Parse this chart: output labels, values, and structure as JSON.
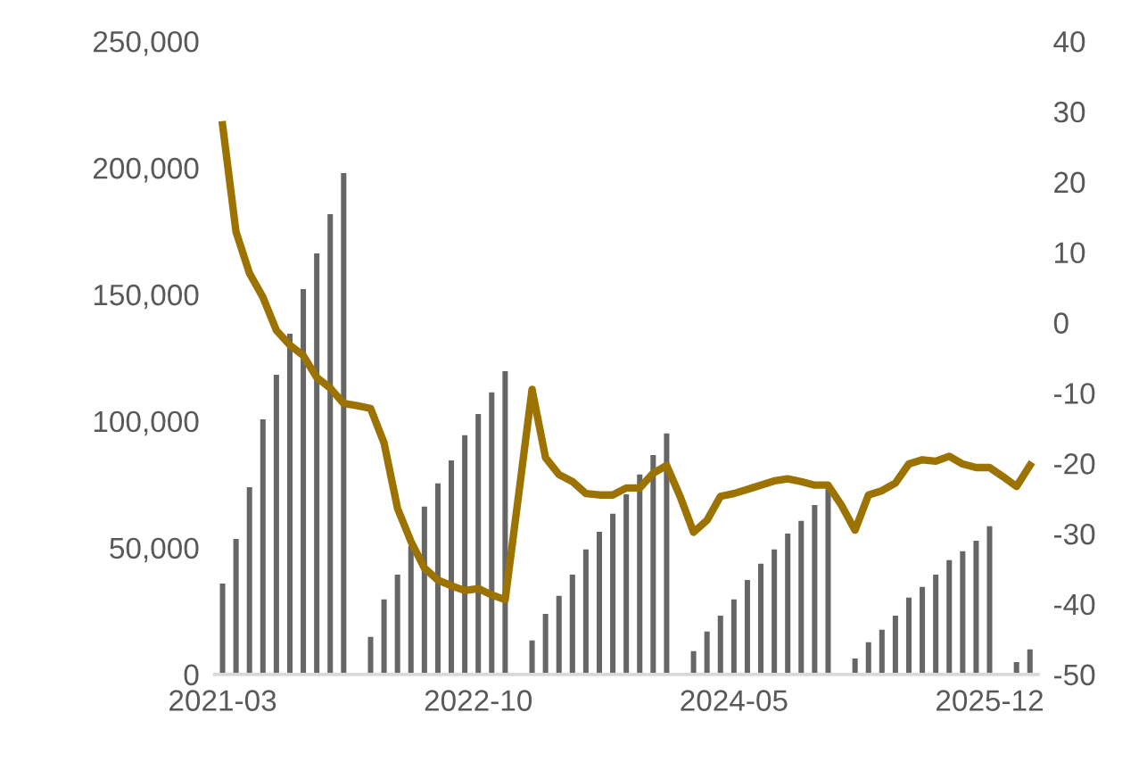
{
  "chart_data": {
    "type": "bar",
    "categories": [
      "2021-03",
      null,
      null,
      null,
      null,
      null,
      null,
      null,
      null,
      null,
      null,
      null,
      null,
      null,
      null,
      null,
      null,
      null,
      null,
      "2022-10",
      null,
      null,
      null,
      null,
      null,
      null,
      null,
      null,
      null,
      null,
      null,
      null,
      null,
      null,
      null,
      null,
      null,
      null,
      "2024-05",
      null,
      null,
      null,
      null,
      null,
      null,
      null,
      null,
      null,
      null,
      null,
      null,
      null,
      null,
      null,
      null,
      null,
      null,
      "2025-12",
      null,
      null,
      null
    ],
    "series": [
      {
        "color": "#666666",
        "values": [
          35900,
          53500,
          73900,
          100700,
          118300,
          134500,
          152100,
          166200,
          181700,
          197900,
          null,
          14800,
          29600,
          39400,
          50700,
          66200,
          75400,
          84500,
          94400,
          102800,
          111300,
          119700,
          null,
          13400,
          23900,
          31000,
          39400,
          49300,
          56300,
          63400,
          71100,
          78900,
          86600,
          95100,
          null,
          9200,
          16900,
          23200,
          29600,
          37300,
          43700,
          49300,
          55600,
          60600,
          66900,
          73900,
          null,
          6300,
          12700,
          17600,
          23200,
          30300,
          34500,
          39400,
          45100,
          48600,
          52800,
          58500,
          null,
          4900,
          9900
        ]
      },
      {
        "type": "line",
        "axis": "y2",
        "color": "#9c7200",
        "values": [
          28.1,
          12.9,
          7.0,
          3.6,
          -1.1,
          -3.2,
          -4.7,
          -7.8,
          -9.3,
          -11.5,
          -11.8,
          -12.2,
          -17.1,
          -26.4,
          -31.1,
          -34.9,
          -36.6,
          -37.4,
          -38.1,
          -37.8,
          -38.7,
          -39.4,
          -24.5,
          -9.5,
          -19.2,
          -21.6,
          -22.6,
          -24.3,
          -24.5,
          -24.5,
          -23.5,
          -23.5,
          -21.4,
          -20.3,
          -24.7,
          -29.8,
          -28.1,
          -24.7,
          -24.3,
          -23.7,
          -23.1,
          -22.5,
          -22.2,
          -22.6,
          -23.1,
          -23.1,
          -26.0,
          -29.5,
          -24.5,
          -23.9,
          -22.8,
          -20.1,
          -19.5,
          -19.7,
          -19.0,
          -20.1,
          -20.6,
          -20.6,
          -21.9,
          -23.3,
          -20.3
        ]
      }
    ],
    "ylim": [
      0,
      250000
    ],
    "yticks": [
      {
        "value": 0,
        "label": "0"
      },
      {
        "value": 50000,
        "label": "50,000"
      },
      {
        "value": 100000,
        "label": "100,000"
      },
      {
        "value": 150000,
        "label": "150,000"
      },
      {
        "value": 200000,
        "label": "200,000"
      },
      {
        "value": 250000,
        "label": "250,000"
      }
    ],
    "y2lim": [
      -50,
      40
    ],
    "y2ticks": [
      -50,
      -40,
      -30,
      -20,
      -10,
      0,
      10,
      20,
      30,
      40
    ],
    "grid": false,
    "marker": "none",
    "line_style": "solid"
  }
}
